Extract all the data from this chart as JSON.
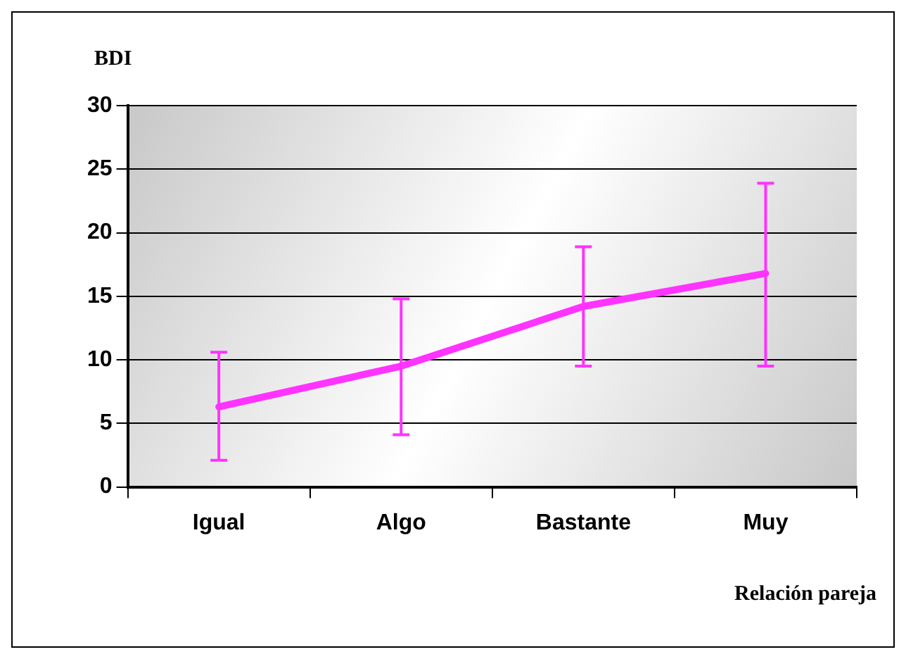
{
  "chart_data": {
    "type": "line",
    "ylabel": "BDI",
    "xlabel": "Relación pareja",
    "categories": [
      "Igual",
      "Algo",
      "Bastante",
      "Muy"
    ],
    "series": [
      {
        "color": "#ff33ff",
        "values": [
          6.3,
          9.5,
          14.2,
          16.8
        ],
        "errors": [
          [
            2.1,
            10.6
          ],
          [
            4.1,
            14.8
          ],
          [
            9.5,
            18.9
          ],
          [
            9.5,
            23.9
          ]
        ]
      }
    ],
    "ylim": [
      0,
      30
    ],
    "yticks": [
      0,
      5,
      10,
      15,
      20,
      25,
      30
    ],
    "grid": "y",
    "legend": false,
    "marker": "none",
    "line_style": "solid"
  }
}
